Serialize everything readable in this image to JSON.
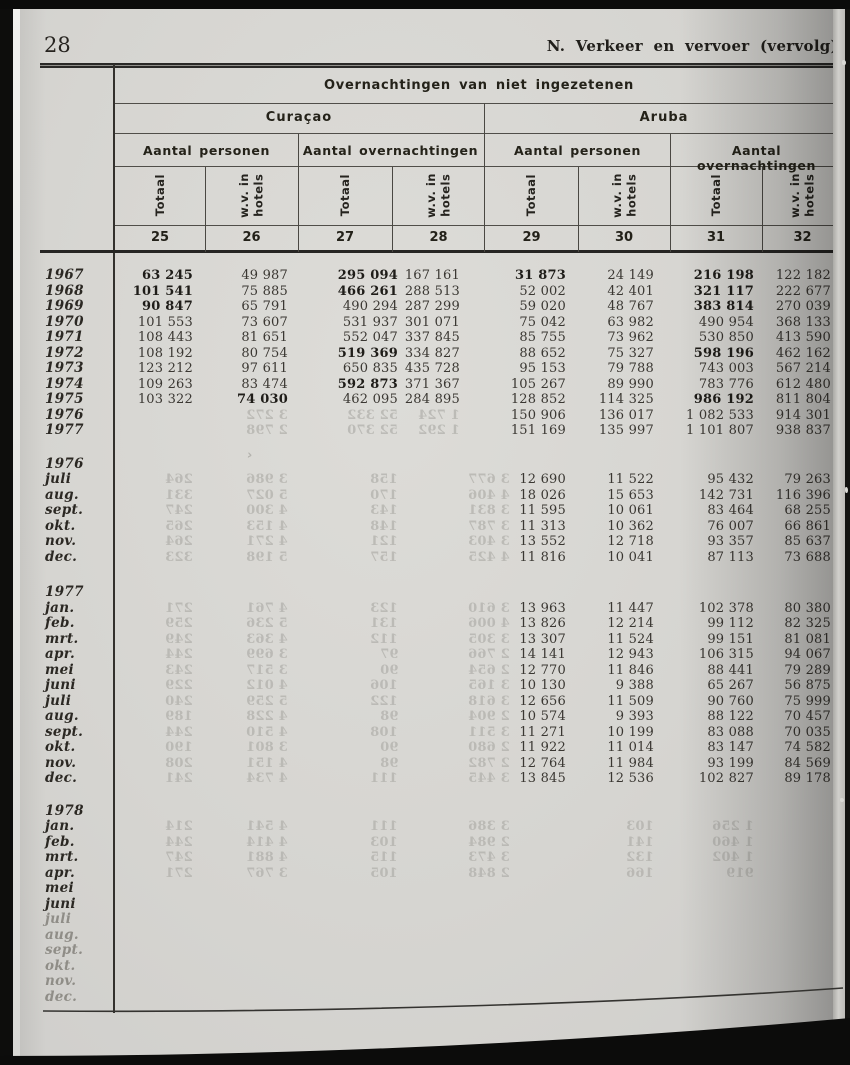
{
  "page": {
    "number": "28",
    "section_header": "N. Verkeer en vervoer (vervolg)",
    "stray_mark": "›"
  },
  "table": {
    "title": "Overnachtingen van niet ingezetenen",
    "header": {
      "groups": [
        {
          "label": "Curaçao",
          "subs": [
            {
              "label": "Aantal personen",
              "cols": [
                {
                  "rot": "Totaal",
                  "num": "25"
                },
                {
                  "rot": "w.v. in\nhotels",
                  "num": "26"
                }
              ]
            },
            {
              "label": "Aantal overnachtingen",
              "cols": [
                {
                  "rot": "Totaal",
                  "num": "27"
                },
                {
                  "rot": "w.v. in\nhotels",
                  "num": "28"
                }
              ]
            }
          ]
        },
        {
          "label": "Aruba",
          "subs": [
            {
              "label": "Aantal personen",
              "cols": [
                {
                  "rot": "Totaal",
                  "num": "29"
                },
                {
                  "rot": "w.v. in\nhotels",
                  "num": "30"
                }
              ]
            },
            {
              "label": "Aantal overnachtingen",
              "cols": [
                {
                  "rot": "Totaal",
                  "num": "31"
                },
                {
                  "rot": "w.v. in\nhotels",
                  "num": "32"
                }
              ]
            }
          ]
        }
      ]
    },
    "sections": [
      {
        "name": "years",
        "gap": 0,
        "rows": [
          {
            "label": "1967",
            "cells": [
              "63 245",
              "49 987",
              "295 094",
              "167 161",
              "31 873",
              "24 149",
              "216 198",
              "122 182"
            ],
            "bold": [
              0,
              2,
              4,
              6
            ]
          },
          {
            "label": "1968",
            "cells": [
              "101 541",
              "75 885",
              "466 261",
              "288 513",
              "52 002",
              "42 401",
              "321 117",
              "222 677"
            ],
            "bold": [
              0,
              2,
              6
            ]
          },
          {
            "label": "1969",
            "cells": [
              "90 847",
              "65 791",
              "490 294",
              "287 299",
              "59 020",
              "48 767",
              "383 814",
              "270 039"
            ],
            "bold": [
              0,
              6
            ]
          },
          {
            "label": "1970",
            "cells": [
              "101 553",
              "73 607",
              "531 937",
              "301 071",
              "75 042",
              "63 982",
              "490 954",
              "368 133"
            ],
            "bold": []
          },
          {
            "label": "1971",
            "cells": [
              "108 443",
              "81 651",
              "552 047",
              "337 845",
              "85 755",
              "73 962",
              "530 850",
              "413 590"
            ],
            "bold": []
          },
          {
            "label": "1972",
            "cells": [
              "108 192",
              "80 754",
              "519 369",
              "334 827",
              "88 652",
              "75 327",
              "598 196",
              "462 162"
            ],
            "bold": [
              2,
              6
            ]
          },
          {
            "label": "1973",
            "cells": [
              "123 212",
              "97 611",
              "650 835",
              "435 728",
              "95 153",
              "79 788",
              "743 003",
              "567 214"
            ],
            "bold": []
          },
          {
            "label": "1974",
            "cells": [
              "109 263",
              "83 474",
              "592 873",
              "371 367",
              "105 267",
              "89 990",
              "783 776",
              "612 480"
            ],
            "bold": [
              2
            ]
          },
          {
            "label": "1975",
            "cells": [
              "103 322",
              "74 030",
              "462 095",
              "284 895",
              "128 852",
              "114 325",
              "986 192",
              "811 804"
            ],
            "bold": [
              1,
              6
            ]
          },
          {
            "label": "1976",
            "cells": [
              "",
              "",
              "",
              "",
              "150 906",
              "136 017",
              "1 082 533",
              "914 301"
            ],
            "bold": []
          },
          {
            "label": "1977",
            "cells": [
              "",
              "",
              "",
              "",
              "151 169",
              "135 997",
              "1 101 807",
              "938 837"
            ],
            "bold": []
          }
        ],
        "ghost_rows": [
          [],
          [],
          [],
          [],
          [],
          [],
          [],
          [],
          [],
          [
            "",
            "3 272",
            "52 332",
            "1 724",
            "",
            "",
            "",
            ""
          ],
          [
            "",
            "2 798",
            "52 370",
            "1 292",
            "",
            "",
            "",
            ""
          ]
        ]
      },
      {
        "name": "1976-months",
        "gap": 18,
        "rows": [
          {
            "label": "1976"
          },
          {
            "label": "juli",
            "cells": [
              "",
              "",
              "",
              "",
              "12 690",
              "11 522",
              "95 432",
              "79 263"
            ]
          },
          {
            "label": "aug.",
            "cells": [
              "",
              "",
              "",
              "",
              "18 026",
              "15 653",
              "142 731",
              "116 396"
            ]
          },
          {
            "label": "sept.",
            "cells": [
              "",
              "",
              "",
              "",
              "11 595",
              "10 061",
              "83 464",
              "68 255"
            ]
          },
          {
            "label": "okt.",
            "cells": [
              "",
              "",
              "",
              "",
              "11 313",
              "10 362",
              "76 007",
              "66 861"
            ]
          },
          {
            "label": "nov.",
            "cells": [
              "",
              "",
              "",
              "",
              "13 552",
              "12 718",
              "93 357",
              "85 637"
            ]
          },
          {
            "label": "dec.",
            "cells": [
              "",
              "",
              "",
              "",
              "11 816",
              "10 041",
              "87 113",
              "73 688"
            ]
          }
        ],
        "ghost_rows": [
          [],
          [
            "264",
            "3 986",
            "158",
            "",
            "3 677",
            "",
            "",
            ""
          ],
          [
            "331",
            "5 027",
            "170",
            "",
            "4 406",
            "",
            "",
            ""
          ],
          [
            "247",
            "4 300",
            "143",
            "",
            "3 831",
            "",
            "",
            ""
          ],
          [
            "265",
            "4 153",
            "148",
            "",
            "3 787",
            "",
            "",
            ""
          ],
          [
            "264",
            "4 271",
            "121",
            "",
            "3 403",
            "",
            "",
            ""
          ],
          [
            "323",
            "5 198",
            "157",
            "",
            "4 425",
            "",
            "",
            ""
          ]
        ]
      },
      {
        "name": "1977-months",
        "gap": 20,
        "rows": [
          {
            "label": "1977"
          },
          {
            "label": "jan.",
            "cells": [
              "",
              "",
              "",
              "",
              "13 963",
              "11 447",
              "102 378",
              "80 380"
            ]
          },
          {
            "label": "feb.",
            "cells": [
              "",
              "",
              "",
              "",
              "13 826",
              "12 214",
              "99 112",
              "82 325"
            ]
          },
          {
            "label": "mrt.",
            "cells": [
              "",
              "",
              "",
              "",
              "13 307",
              "11 524",
              "99 151",
              "81 081"
            ]
          },
          {
            "label": "apr.",
            "cells": [
              "",
              "",
              "",
              "",
              "14 141",
              "12 943",
              "106 315",
              "94 067"
            ]
          },
          {
            "label": "mei",
            "cells": [
              "",
              "",
              "",
              "",
              "12 770",
              "11 846",
              "88 441",
              "79 289"
            ]
          },
          {
            "label": "juni",
            "cells": [
              "",
              "",
              "",
              "",
              "10 130",
              "9 388",
              "65 267",
              "56 875"
            ]
          },
          {
            "label": "juli",
            "cells": [
              "",
              "",
              "",
              "",
              "12 656",
              "11 509",
              "90 760",
              "75 999"
            ]
          },
          {
            "label": "aug.",
            "cells": [
              "",
              "",
              "",
              "",
              "10 574",
              "9 393",
              "88 122",
              "70 457"
            ]
          },
          {
            "label": "sept.",
            "cells": [
              "",
              "",
              "",
              "",
              "11 271",
              "10 199",
              "83 088",
              "70 035"
            ]
          },
          {
            "label": "okt.",
            "cells": [
              "",
              "",
              "",
              "",
              "11 922",
              "11 014",
              "83 147",
              "74 582"
            ]
          },
          {
            "label": "nov.",
            "cells": [
              "",
              "",
              "",
              "",
              "12 764",
              "11 984",
              "93 199",
              "84 569"
            ]
          },
          {
            "label": "dec.",
            "cells": [
              "",
              "",
              "",
              "",
              "13 845",
              "12 536",
              "102 827",
              "89 178"
            ]
          }
        ],
        "ghost_rows": [
          [],
          [
            "271",
            "4 761",
            "123",
            "",
            "3 610",
            "",
            "",
            ""
          ],
          [
            "259",
            "5 236",
            "131",
            "",
            "4 006",
            "",
            "",
            ""
          ],
          [
            "249",
            "4 363",
            "112",
            "",
            "3 305",
            "",
            "",
            ""
          ],
          [
            "244",
            "3 699",
            "97",
            "",
            "2 766",
            "",
            "",
            ""
          ],
          [
            "243",
            "3 517",
            "90",
            "",
            "2 654",
            "",
            "",
            ""
          ],
          [
            "229",
            "4 012",
            "106",
            "",
            "3 165",
            "",
            "",
            ""
          ],
          [
            "240",
            "5 259",
            "122",
            "",
            "3 618",
            "",
            "",
            ""
          ],
          [
            "189",
            "4 228",
            "98",
            "",
            "2 904",
            "",
            "",
            ""
          ],
          [
            "244",
            "4 510",
            "108",
            "",
            "3 511",
            "",
            "",
            ""
          ],
          [
            "190",
            "3 801",
            "90",
            "",
            "2 680",
            "",
            "",
            ""
          ],
          [
            "208",
            "4 151",
            "98",
            "",
            "2 782",
            "",
            "",
            ""
          ],
          [
            "241",
            "4 734",
            "111",
            "",
            "3 445",
            "",
            "",
            ""
          ]
        ]
      },
      {
        "name": "1978-months",
        "gap": 17,
        "rows": [
          {
            "label": "1978"
          },
          {
            "label": "jan."
          },
          {
            "label": "feb."
          },
          {
            "label": "mrt."
          },
          {
            "label": "apr."
          },
          {
            "label": "mei"
          },
          {
            "label": "juni"
          },
          {
            "label": "juli",
            "faded": true
          },
          {
            "label": "aug.",
            "faded": true
          },
          {
            "label": "sept.",
            "faded": true
          },
          {
            "label": "okt.",
            "faded": true
          },
          {
            "label": "nov.",
            "faded": true
          },
          {
            "label": "dec.",
            "faded": true
          }
        ],
        "ghost_rows": [
          [],
          [
            "214",
            "4 541",
            "111",
            "",
            "3 386",
            "103",
            "1 256",
            ""
          ],
          [
            "244",
            "4 414",
            "103",
            "",
            "2 984",
            "141",
            "1 460",
            ""
          ],
          [
            "247",
            "4 881",
            "115",
            "",
            "3 473",
            "132",
            "1 402",
            ""
          ],
          [
            "271",
            "3 767",
            "105",
            "",
            "2 848",
            "166",
            "919",
            ""
          ],
          [],
          [],
          [],
          [],
          [],
          [],
          [],
          []
        ]
      }
    ]
  }
}
